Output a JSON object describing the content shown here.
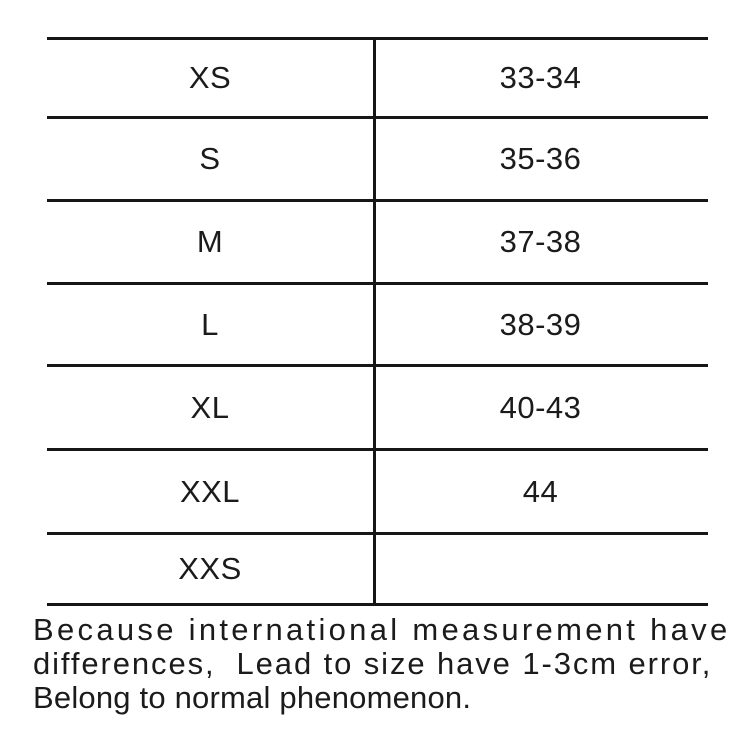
{
  "table": {
    "rows": [
      {
        "size": "XS",
        "range": "33-34"
      },
      {
        "size": "S",
        "range": "35-36"
      },
      {
        "size": "M",
        "range": "37-38"
      },
      {
        "size": "L",
        "range": "38-39"
      },
      {
        "size": "XL",
        "range": "40-43"
      },
      {
        "size": "XXL",
        "range": "44"
      },
      {
        "size": "XXS",
        "range": ""
      }
    ]
  },
  "note": {
    "line1": "Because international measurement have",
    "line2": "differences,  Lead to size have 1-3cm error,",
    "line3": "Belong to normal phenomenon."
  }
}
